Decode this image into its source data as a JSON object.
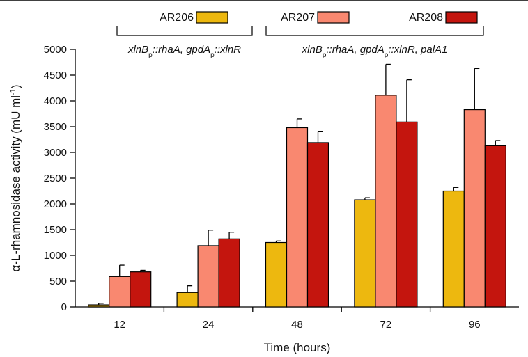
{
  "chart_data": {
    "type": "bar",
    "xlabel": "Time (hours)",
    "ylabel_main": "α-L-rhamnosidase activity (mU ml",
    "ylabel_sup": "-1",
    "ylabel_end": ")",
    "ylim": [
      0,
      5000
    ],
    "yticks": [
      0,
      500,
      1000,
      1500,
      2000,
      2500,
      3000,
      3500,
      4000,
      4500,
      5000
    ],
    "categories": [
      "12",
      "24",
      "48",
      "72",
      "96"
    ],
    "series": [
      {
        "name": "AR206",
        "color": "#EDB80F",
        "values": [
          40,
          280,
          1250,
          2080,
          2250
        ],
        "errors": [
          30,
          130,
          30,
          40,
          70
        ]
      },
      {
        "name": "AR207",
        "color": "#F98870",
        "values": [
          590,
          1190,
          3480,
          4110,
          3830
        ],
        "errors": [
          220,
          300,
          170,
          600,
          800
        ]
      },
      {
        "name": "AR208",
        "color": "#C4150E",
        "values": [
          680,
          1320,
          3190,
          3590,
          3130
        ],
        "errors": [
          30,
          130,
          220,
          820,
          100
        ]
      }
    ],
    "genotype_groups": [
      {
        "series_members": [
          "AR206"
        ],
        "parts": [
          {
            "t": "xlnB"
          },
          {
            "t": "p",
            "sub": true
          },
          {
            "t": "::rhaA, gpdA"
          },
          {
            "t": "p",
            "sub": true
          },
          {
            "t": "::xlnR"
          }
        ]
      },
      {
        "series_members": [
          "AR207",
          "AR208"
        ],
        "parts": [
          {
            "t": "xlnB"
          },
          {
            "t": "p",
            "sub": true
          },
          {
            "t": "::rhaA, gpdA"
          },
          {
            "t": "p",
            "sub": true
          },
          {
            "t": "::xlnR, palA1"
          }
        ]
      }
    ]
  }
}
